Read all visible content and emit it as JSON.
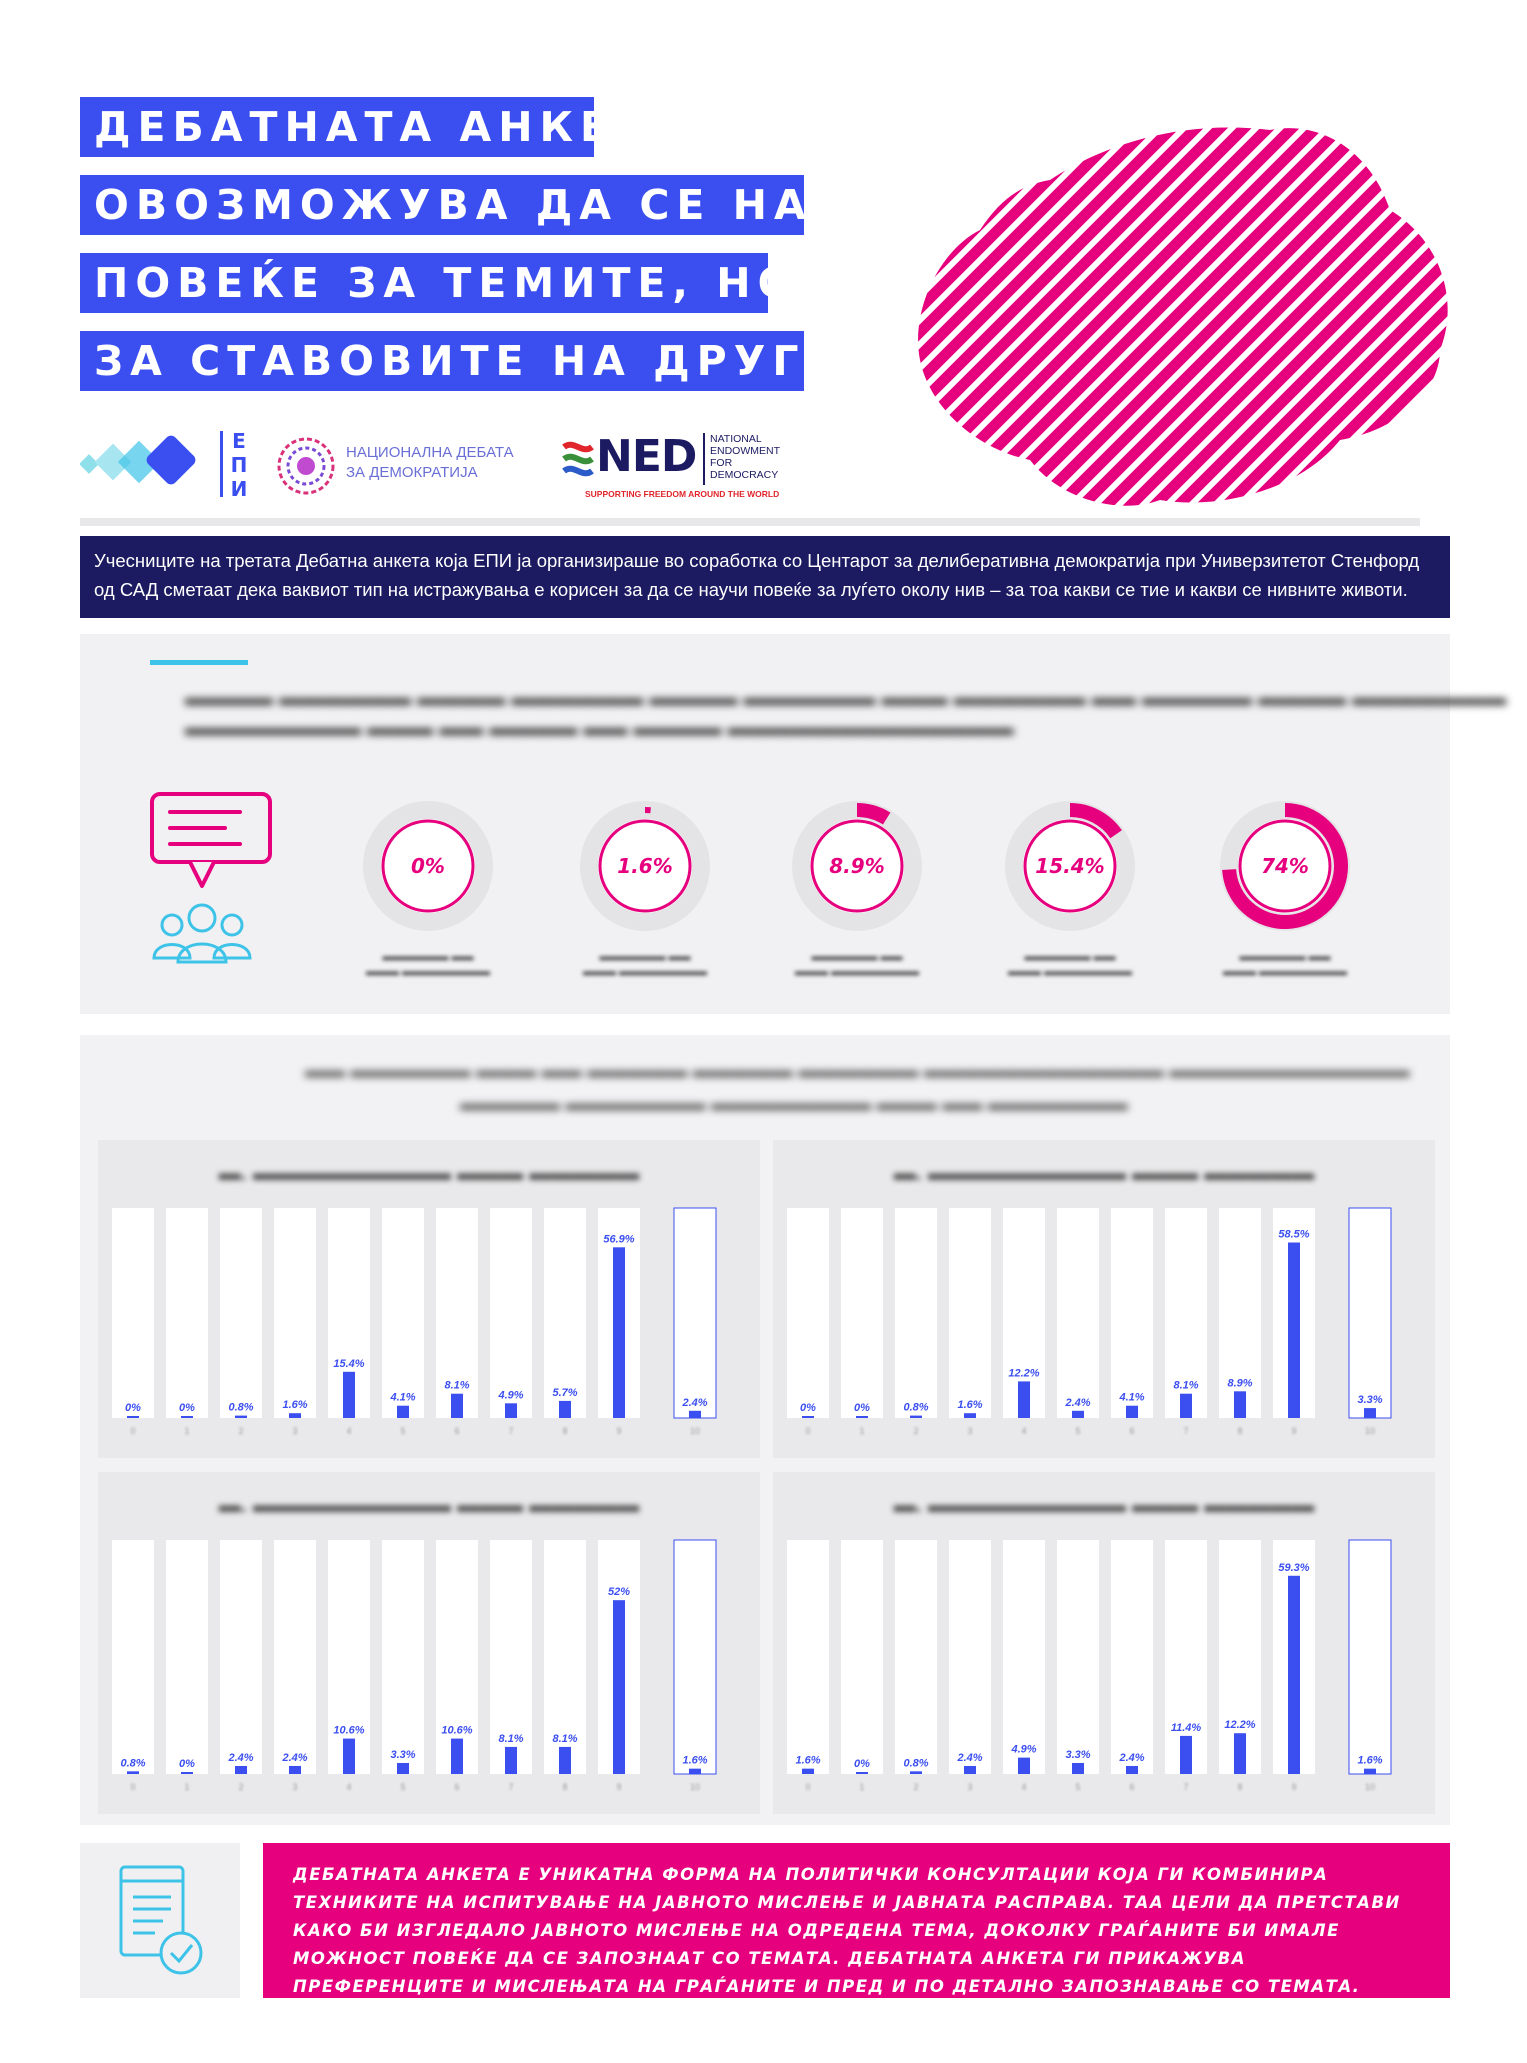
{
  "title_lines": [
    "ДЕБАТНАТА АНКЕТА",
    "ОВОЗМОЖУВА ДА СЕ НАУЧИ",
    "ПОВЕЌЕ ЗА ТЕМИТЕ, НО И",
    "ЗА СТАВОВИТЕ НА ДРУГИТЕ"
  ],
  "logos": {
    "epi": "ЕПИ",
    "nd_line1": "НАЦИОНАЛНА ДЕБАТА",
    "nd_line2": "ЗА ДЕМОКРАТИЈА",
    "ned": "NED",
    "ned_line1": "NATIONAL",
    "ned_line2": "ENDOWMENT",
    "ned_line3": "FOR",
    "ned_line4": "DEMOCRACY",
    "ned_tag": "SUPPORTING FREEDOM AROUND THE WORLD"
  },
  "intro": "Учесниците на третата Дебатна анкета која ЕПИ ја организираше во соработка со Центарот за делиберативна демократија при Универзитетот Стенфорд од САД сметаат дека ваквиот тип на истражувања е корисен за да се научи повеќе за луѓето околу нив – за тоа какви се тие и какви се нивните животи.",
  "colors": {
    "blue": "#3b4ff0",
    "navy": "#1c1b62",
    "magenta": "#e6007e",
    "cyan": "#3ec3e8"
  },
  "chart_data": [
    {
      "type": "pie",
      "categories": [
        "",
        "",
        "",
        "",
        ""
      ],
      "values": [
        0,
        1.6,
        8.9,
        15.4,
        74
      ],
      "labels": [
        "0%",
        "1.6%",
        "8.9%",
        "15.4%",
        "74%"
      ]
    },
    {
      "type": "bar",
      "categories": [
        "0",
        "1",
        "2",
        "3",
        "4",
        "5",
        "6",
        "7",
        "8",
        "9",
        "10"
      ],
      "values": [
        0,
        0,
        0.8,
        1.6,
        15.4,
        4.1,
        8.1,
        4.9,
        5.7,
        56.9,
        2.4
      ],
      "labels": [
        "0%",
        "0%",
        "0.8%",
        "1.6%",
        "15.4%",
        "4.1%",
        "8.1%",
        "4.9%",
        "5.7%",
        "56.9%",
        "2.4%"
      ]
    },
    {
      "type": "bar",
      "categories": [
        "0",
        "1",
        "2",
        "3",
        "4",
        "5",
        "6",
        "7",
        "8",
        "9",
        "10"
      ],
      "values": [
        0,
        0,
        0.8,
        1.6,
        12.2,
        2.4,
        4.1,
        8.1,
        8.9,
        58.5,
        3.3
      ],
      "labels": [
        "0%",
        "0%",
        "0.8%",
        "1.6%",
        "12.2%",
        "2.4%",
        "4.1%",
        "8.1%",
        "8.9%",
        "58.5%",
        "3.3%"
      ]
    },
    {
      "type": "bar",
      "categories": [
        "0",
        "1",
        "2",
        "3",
        "4",
        "5",
        "6",
        "7",
        "8",
        "9",
        "10"
      ],
      "values": [
        0.8,
        0,
        2.4,
        2.4,
        10.6,
        3.3,
        10.6,
        8.1,
        8.1,
        52,
        1.6
      ],
      "labels": [
        "0.8%",
        "0%",
        "2.4%",
        "2.4%",
        "10.6%",
        "3.3%",
        "10.6%",
        "8.1%",
        "8.1%",
        "52%",
        "1.6%"
      ]
    },
    {
      "type": "bar",
      "categories": [
        "0",
        "1",
        "2",
        "3",
        "4",
        "5",
        "6",
        "7",
        "8",
        "9",
        "10"
      ],
      "values": [
        1.6,
        0,
        0.8,
        2.4,
        4.9,
        3.3,
        2.4,
        11.4,
        12.2,
        59.3,
        1.6
      ],
      "labels": [
        "1.6%",
        "0%",
        "0.8%",
        "2.4%",
        "4.9%",
        "3.3%",
        "2.4%",
        "11.4%",
        "12.2%",
        "59.3%",
        "1.6%"
      ]
    }
  ],
  "bottom_text": "ДЕБАТНАТА АНКЕТА Е УНИКАТНА ФОРМА НА ПОЛИТИЧКИ КОНСУЛТАЦИИ КОЈА ГИ КОМБИНИРА ТЕХНИКИТЕ НА ИСПИТУВАЊЕ НА ЈАВНОТО МИСЛЕЊЕ И ЈАВНАТА РАСПРАВА. ТАА ЦЕЛИ ДА ПРЕТСТАВИ КАКО БИ ИЗГЛЕДАЛО ЈАВНОТО МИСЛЕЊЕ НА ОДРЕДЕНА ТЕМА, ДОКОЛКУ ГРАЃАНИТЕ БИ ИМАЛЕ МОЖНОСТ ПОВЕЌЕ ДА СЕ ЗАПОЗНААТ СО ТЕМАТА. ДЕБАТНАТА АНКЕТА ГИ ПРИКАЖУВА ПРЕФЕРЕНЦИТЕ И МИСЛЕЊАТА НА ГРАЃАНИТЕ И ПРЕД И ПО ДЕТАЛНО ЗАПОЗНАВАЊЕ СО ТЕМАТА."
}
